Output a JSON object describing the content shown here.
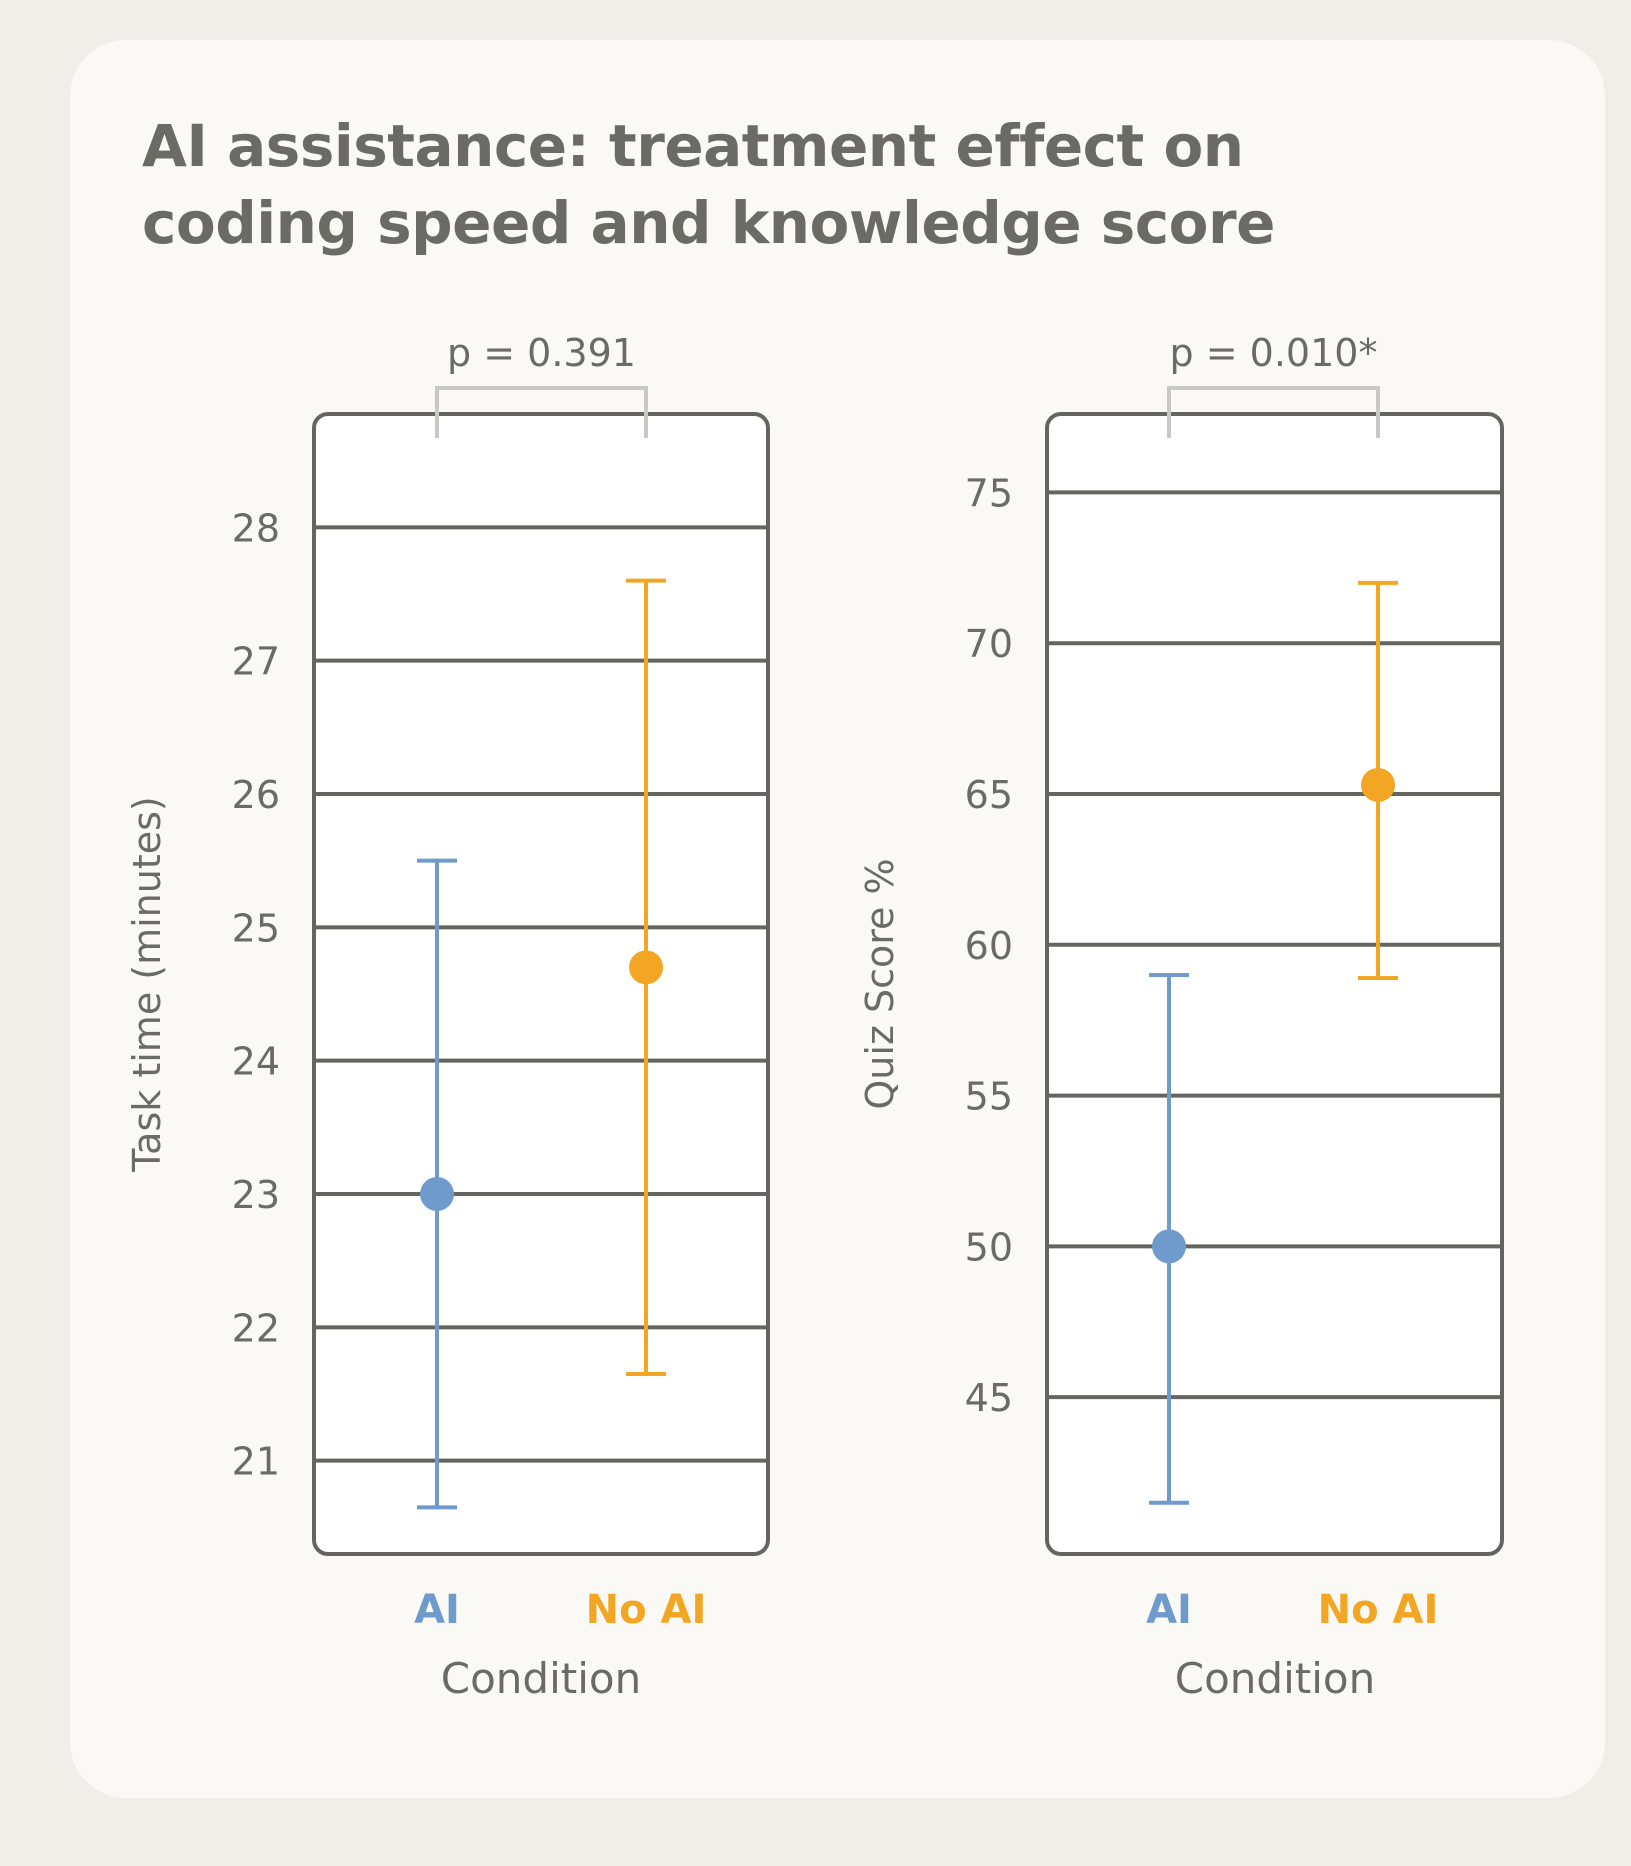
{
  "title_lines": [
    "AI assistance: treatment effect on",
    "coding speed and knowledge score"
  ],
  "colors": {
    "AI": "#6f9bcc",
    "No AI": "#f2a623",
    "frame": "#65655f",
    "text": "#6b6b66",
    "bracket": "#c9c8c3"
  },
  "chart_data": [
    {
      "type": "scatter",
      "subtype": "point-with-error-bars",
      "xlabel": "Condition",
      "ylabel": "Task time (minutes)",
      "categories": [
        "AI",
        "No AI"
      ],
      "yticks": [
        21,
        22,
        23,
        24,
        25,
        26,
        27,
        28
      ],
      "ylim": [
        20.3,
        28.85
      ],
      "grid": true,
      "annotation": "p = 0.391",
      "points": [
        {
          "category": "AI",
          "value": 23.0,
          "lower": 20.65,
          "upper": 25.5
        },
        {
          "category": "No AI",
          "value": 24.7,
          "lower": 21.65,
          "upper": 27.6
        }
      ]
    },
    {
      "type": "scatter",
      "subtype": "point-with-error-bars",
      "xlabel": "Condition",
      "ylabel": "Quiz Score %",
      "categories": [
        "AI",
        "No AI"
      ],
      "yticks": [
        45,
        50,
        55,
        60,
        65,
        70,
        75
      ],
      "ylim": [
        39.8,
        77.6
      ],
      "grid": true,
      "annotation": "p = 0.010*",
      "points": [
        {
          "category": "AI",
          "value": 50.0,
          "lower": 41.5,
          "upper": 59.0
        },
        {
          "category": "No AI",
          "value": 65.3,
          "lower": 58.9,
          "upper": 72.0
        }
      ]
    }
  ]
}
